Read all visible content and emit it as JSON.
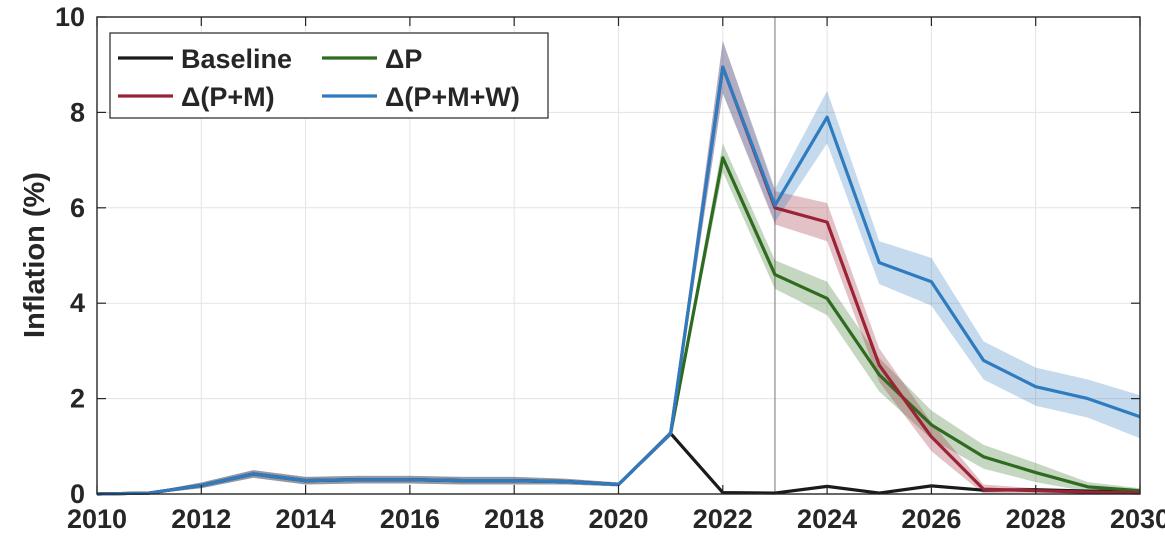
{
  "chart_data": {
    "type": "line",
    "title": "",
    "xlabel": "",
    "ylabel": "Inflation (%)",
    "xlim": [
      2010,
      2030
    ],
    "ylim": [
      0,
      10
    ],
    "xticks": [
      2010,
      2012,
      2014,
      2016,
      2018,
      2020,
      2022,
      2024,
      2026,
      2028,
      2030
    ],
    "yticks": [
      0,
      2,
      4,
      6,
      8,
      10
    ],
    "grid": true,
    "legend_position": "top-left",
    "x": [
      2010,
      2011,
      2012,
      2013,
      2014,
      2015,
      2016,
      2017,
      2018,
      2019,
      2020,
      2021,
      2022,
      2023,
      2024,
      2025,
      2026,
      2027,
      2028,
      2029,
      2030
    ],
    "series": [
      {
        "name": "Baseline",
        "color": "#1a1a1a",
        "values": [
          0,
          0.02,
          0.18,
          0.42,
          0.28,
          0.3,
          0.3,
          0.28,
          0.28,
          0.26,
          0.2,
          1.27,
          0.03,
          0.02,
          0.16,
          0.02,
          0.17,
          0.08,
          0.09,
          0.06,
          0.05
        ],
        "band": null
      },
      {
        "name": "ΔP",
        "color": "#2e6b1f",
        "values": [
          0,
          0.02,
          0.18,
          0.42,
          0.28,
          0.3,
          0.3,
          0.28,
          0.28,
          0.26,
          0.2,
          1.27,
          7.05,
          4.6,
          4.1,
          2.5,
          1.45,
          0.78,
          0.45,
          0.15,
          0.07
        ],
        "band": [
          0,
          0.02,
          0.06,
          0.08,
          0.08,
          0.08,
          0.08,
          0.08,
          0.08,
          0.06,
          0.04,
          0.06,
          0.3,
          0.3,
          0.35,
          0.35,
          0.3,
          0.25,
          0.2,
          0.1,
          0.05
        ]
      },
      {
        "name": "Δ(P+M)",
        "color": "#9b2335",
        "values": [
          0,
          0.02,
          0.18,
          0.42,
          0.28,
          0.3,
          0.3,
          0.28,
          0.28,
          0.26,
          0.2,
          1.27,
          8.95,
          6.0,
          5.7,
          2.7,
          1.2,
          0.1,
          0.07,
          0.04,
          0.03
        ],
        "band": [
          0,
          0.02,
          0.06,
          0.08,
          0.08,
          0.08,
          0.08,
          0.08,
          0.08,
          0.06,
          0.04,
          0.06,
          0.55,
          0.35,
          0.4,
          0.35,
          0.3,
          0.1,
          0.05,
          0.03,
          0.02
        ]
      },
      {
        "name": "Δ(P+M+W)",
        "color": "#2f7bbf",
        "values": [
          0,
          0.02,
          0.18,
          0.42,
          0.28,
          0.3,
          0.3,
          0.28,
          0.28,
          0.26,
          0.2,
          1.27,
          8.95,
          6.05,
          7.9,
          4.85,
          4.45,
          2.8,
          2.25,
          2.0,
          1.62
        ],
        "band": [
          0,
          0.02,
          0.06,
          0.08,
          0.08,
          0.08,
          0.08,
          0.08,
          0.08,
          0.06,
          0.04,
          0.06,
          0.55,
          0.35,
          0.55,
          0.45,
          0.5,
          0.4,
          0.4,
          0.4,
          0.45
        ]
      }
    ],
    "vertical_line_x": 2023
  }
}
